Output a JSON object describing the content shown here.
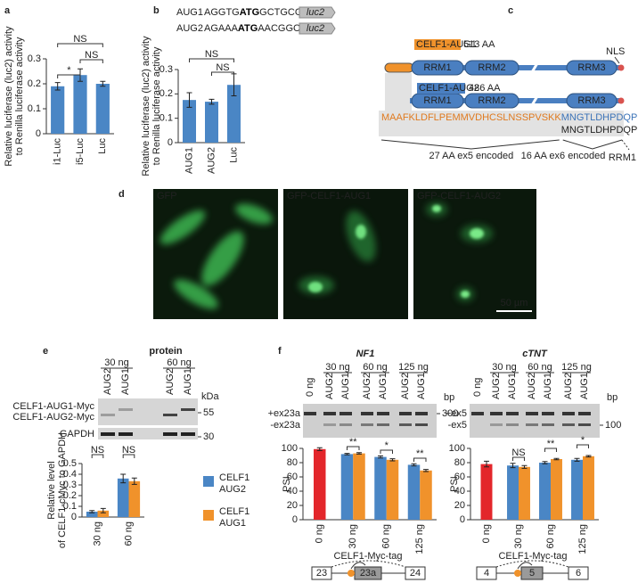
{
  "panel_labels": [
    "a",
    "b",
    "c",
    "d",
    "e",
    "f"
  ],
  "panel_b": {
    "constructs": [
      {
        "name": "AUG1",
        "seq_before": "AGGTG",
        "start_codon": "ATG",
        "seq_after": "GCTGCGTTTA",
        "reporter": "luc2"
      },
      {
        "name": "AUG2",
        "seq_before": "AGAAA",
        "start_codon": "ATG",
        "seq_after": "AACGGCACCC",
        "reporter": "luc2"
      }
    ]
  },
  "panel_c": {
    "isoforms": [
      {
        "name": "CELF1-AUG1",
        "length": "513 AA"
      },
      {
        "name": "CELF1-AUG2",
        "length": "486 AA"
      }
    ],
    "domains": [
      "RRM1",
      "RRM2",
      "RRM3"
    ],
    "nls": "NLS",
    "sequence_ex5": "MAAFKLDFLPEMMVDHCSLNSSPVSKK",
    "sequence_ex6": "MNGTLDHPDQPDLDAI...",
    "ex5_note": "27 AA ex5 encoded",
    "ex6_note": "16 AA ex6 encoded",
    "next_domain": "RRM1"
  },
  "panel_d": {
    "images": [
      "GFP",
      "GFP-CELF1-AUG1",
      "GFP-CELF1-AUG2"
    ],
    "scale_bar": "50 µm"
  },
  "panel_e": {
    "header": "protein",
    "doses": [
      "30 ng",
      "60 ng"
    ],
    "lanes": [
      "AUG2",
      "AUG1",
      "AUG2",
      "AUG1"
    ],
    "unit": "kDa",
    "bands": [
      "CELF1-AUG1-Myc",
      "CELF1-AUG2-Myc",
      "GAPDH"
    ],
    "markers": [
      "55",
      "30"
    ]
  },
  "panel_f": [
    {
      "doses": [
        "0 ng",
        "30 ng",
        "60 ng",
        "125 ng"
      ],
      "lanes": [
        "AUG2",
        "AUG1",
        "AUG2",
        "AUG1",
        "AUG2",
        "AUG1"
      ],
      "unit": "bp",
      "bands": [
        "+ex23a",
        "-ex23a"
      ],
      "marker": "300",
      "construct": "CELF1-Myc-tag",
      "exons": [
        "23",
        "23a",
        "24"
      ]
    },
    {
      "doses": [
        "0 ng",
        "30 ng",
        "60 ng",
        "125 ng"
      ],
      "lanes": [
        "AUG2",
        "AUG1",
        "AUG2",
        "AUG1",
        "AUG2",
        "AUG1"
      ],
      "unit": "bp",
      "bands": [
        "+ex5",
        "-ex5"
      ],
      "marker": "100",
      "construct": "CELF1-Myc-tag",
      "exons": [
        "4",
        "5",
        "6"
      ]
    }
  ],
  "chart_data": [
    {
      "type": "bar",
      "ylabel": [
        "Relative luciferase (luc2) activity",
        "to Renilla luciferase activity"
      ],
      "categories": [
        "i1-Luc",
        "i5-Luc",
        "Luc"
      ],
      "values": [
        0.19,
        0.235,
        0.2
      ],
      "errors": [
        0.015,
        0.025,
        0.01
      ],
      "color": "#4a86c5",
      "ylim": [
        0,
        0.3
      ],
      "yticks": [
        0,
        0.1,
        0.2,
        0.3
      ],
      "annotations": [
        "NS",
        "*",
        "NS"
      ]
    },
    {
      "type": "bar",
      "ylabel": [
        "Relative luciferase (luc2) activity",
        "to Renilla luciferase activity"
      ],
      "categories": [
        "AUG1",
        "AUG2",
        "Luc"
      ],
      "values": [
        0.175,
        0.168,
        0.237
      ],
      "errors": [
        0.03,
        0.01,
        0.045
      ],
      "color": "#4a86c5",
      "ylim": [
        0,
        0.3
      ],
      "yticks": [
        0,
        0.1,
        0.2,
        0.3
      ],
      "annotations": [
        "NS",
        "NS"
      ]
    },
    {
      "type": "bar",
      "ylabel": [
        "Relative level",
        "of CELF1-cMyc to GAPDH"
      ],
      "categories": [
        "30 ng",
        "60 ng"
      ],
      "series": [
        {
          "name": "CELF1 AUG2",
          "color": "#4a86c5",
          "values": [
            0.05,
            0.36
          ],
          "errors": [
            0.01,
            0.04
          ]
        },
        {
          "name": "CELF1 AUG1",
          "color": "#f0922b",
          "values": [
            0.06,
            0.335
          ],
          "errors": [
            0.02,
            0.03
          ]
        }
      ],
      "ylim": [
        0,
        0.5
      ],
      "yticks": [
        0,
        0.1,
        0.2,
        0.3,
        0.4,
        0.5
      ],
      "annotations": [
        "NS",
        "NS"
      ]
    },
    {
      "type": "bar",
      "title": "NF1",
      "ylabel": [
        "PSI"
      ],
      "categories": [
        "0 ng",
        "30 ng",
        "60 ng",
        "125 ng"
      ],
      "series": [
        {
          "color": "#e3262b",
          "values": [
            99,
            null,
            null,
            null
          ],
          "errors": [
            2,
            null,
            null,
            null
          ]
        },
        {
          "color": "#4a86c5",
          "values": [
            null,
            92,
            88,
            77
          ],
          "errors": [
            null,
            1,
            1.5,
            1.5
          ]
        },
        {
          "color": "#f0922b",
          "values": [
            null,
            93,
            84,
            69
          ],
          "errors": [
            null,
            1,
            1.5,
            1.5
          ]
        }
      ],
      "ylim": [
        0,
        100
      ],
      "yticks": [
        0,
        20,
        40,
        60,
        80,
        100
      ],
      "annotations": [
        "**",
        "*",
        "**"
      ]
    },
    {
      "type": "bar",
      "title": "cTNT",
      "ylabel": [
        "PSI"
      ],
      "categories": [
        "0 ng",
        "30 ng",
        "60 ng",
        "125 ng"
      ],
      "series": [
        {
          "color": "#e3262b",
          "values": [
            78,
            null,
            null,
            null
          ],
          "errors": [
            4,
            null,
            null,
            null
          ]
        },
        {
          "color": "#4a86c5",
          "values": [
            null,
            76,
            80,
            84
          ],
          "errors": [
            null,
            3,
            1.5,
            2
          ]
        },
        {
          "color": "#f0922b",
          "values": [
            null,
            74,
            85,
            89
          ],
          "errors": [
            null,
            2,
            1,
            1
          ]
        }
      ],
      "ylim": [
        0,
        100
      ],
      "yticks": [
        0,
        20,
        40,
        60,
        80,
        100
      ],
      "annotations": [
        "NS",
        "**",
        "*"
      ]
    }
  ]
}
